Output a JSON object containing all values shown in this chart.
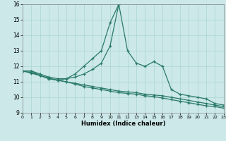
{
  "xlabel": "Humidex (Indice chaleur)",
  "background_color": "#cce8e8",
  "grid_color": "#aad4d4",
  "line_color": "#2a7a6a",
  "x_values": [
    0,
    1,
    2,
    3,
    4,
    5,
    6,
    7,
    8,
    9,
    10,
    11,
    12,
    13,
    14,
    15,
    16,
    17,
    18,
    19,
    20,
    21,
    22,
    23
  ],
  "series1": [
    11.7,
    11.7,
    11.4,
    11.2,
    11.1,
    11.2,
    11.3,
    11.5,
    11.8,
    12.2,
    13.3,
    16.0,
    13.0,
    12.2,
    12.0,
    12.3,
    12.0,
    10.5,
    10.2,
    10.1,
    10.0,
    9.9,
    9.6,
    9.5
  ],
  "series2_x": [
    0,
    1,
    2,
    3,
    4,
    5,
    6,
    7,
    8,
    9,
    10,
    11
  ],
  "series2_y": [
    11.7,
    11.7,
    11.5,
    11.3,
    11.2,
    11.2,
    11.5,
    12.0,
    12.5,
    13.0,
    14.8,
    16.0
  ],
  "series3": [
    11.7,
    11.6,
    11.4,
    11.2,
    11.1,
    11.0,
    10.9,
    10.8,
    10.7,
    10.6,
    10.5,
    10.4,
    10.35,
    10.3,
    10.2,
    10.15,
    10.1,
    10.0,
    9.9,
    9.8,
    9.7,
    9.6,
    9.5,
    9.4
  ],
  "series4": [
    11.7,
    11.55,
    11.4,
    11.25,
    11.1,
    11.0,
    10.85,
    10.7,
    10.6,
    10.5,
    10.4,
    10.3,
    10.25,
    10.2,
    10.1,
    10.05,
    9.95,
    9.85,
    9.75,
    9.65,
    9.55,
    9.45,
    9.4,
    9.3
  ],
  "ylim": [
    9,
    16
  ],
  "xlim": [
    0,
    23
  ],
  "yticks": [
    9,
    10,
    11,
    12,
    13,
    14,
    15,
    16
  ],
  "xticks": [
    0,
    1,
    2,
    3,
    4,
    5,
    6,
    7,
    8,
    9,
    10,
    11,
    12,
    13,
    14,
    15,
    16,
    17,
    18,
    19,
    20,
    21,
    22,
    23
  ]
}
